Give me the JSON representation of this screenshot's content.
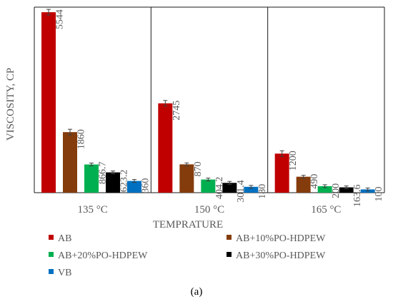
{
  "chart_data": {
    "type": "bar",
    "xlabel": "TEMPRATURE",
    "ylabel": "VISCOSITY, CP",
    "categories": [
      "135 °C",
      "150 °C",
      "165 °C"
    ],
    "series": [
      {
        "name": "AB",
        "color": "#c00000",
        "values": [
          5544,
          2745,
          1200
        ]
      },
      {
        "name": "AB+10%PO-HDPEW",
        "color": "#843c0c",
        "values": [
          1860,
          870,
          490
        ]
      },
      {
        "name": "AB+20%PO-HDPEW",
        "color": "#00b050",
        "values": [
          866.7,
          404.2,
          200
        ]
      },
      {
        "name": "AB+30%PO-HDPEW",
        "color": "#000000",
        "values": [
          623.2,
          301.4,
          163.6
        ]
      },
      {
        "name": "VB",
        "color": "#0070c0",
        "values": [
          360,
          180,
          100
        ]
      }
    ],
    "ylim": [
      0,
      5700
    ],
    "grid": false,
    "error_bars": true,
    "legend_position": "bottom",
    "caption": "(a)"
  }
}
